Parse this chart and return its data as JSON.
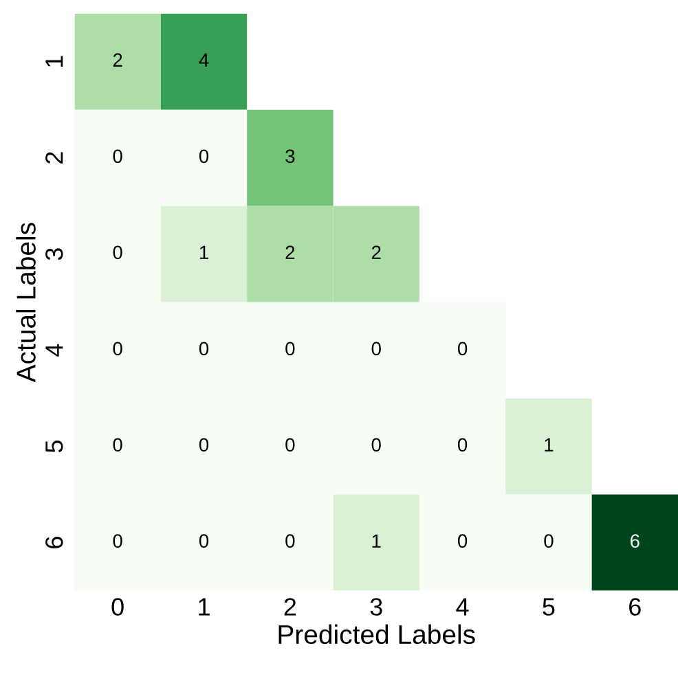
{
  "chart_data": {
    "type": "heatmap",
    "xlabel": "Predicted Labels",
    "ylabel": "Actual Labels",
    "categories": [
      "0",
      "1",
      "2",
      "3",
      "4",
      "5",
      "6"
    ],
    "y_categories": [
      "1",
      "2",
      "3",
      "4",
      "5",
      "6"
    ],
    "cells": [
      [
        2,
        4,
        null,
        null,
        null,
        null,
        null
      ],
      [
        0,
        0,
        3,
        null,
        null,
        null,
        null
      ],
      [
        0,
        1,
        2,
        2,
        null,
        null,
        null
      ],
      [
        0,
        0,
        0,
        0,
        0,
        null,
        null
      ],
      [
        0,
        0,
        0,
        0,
        0,
        1,
        null
      ],
      [
        0,
        0,
        0,
        1,
        0,
        0,
        6
      ]
    ],
    "data_labels": true
  }
}
